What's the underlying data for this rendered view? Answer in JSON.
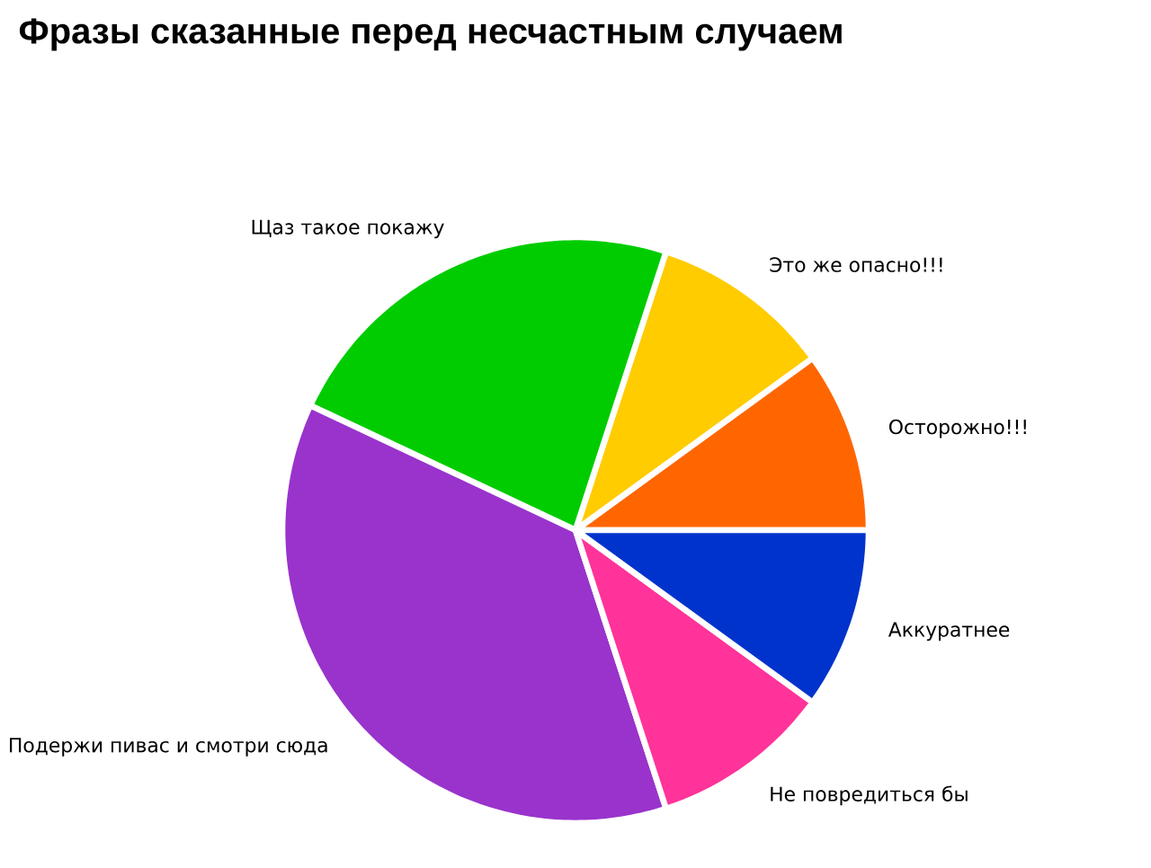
{
  "chart_data": {
    "type": "pie",
    "title": "Фразы сказанные перед несчастным случаем",
    "categories": [
      "Осторожно!!!",
      "Это же опасно!!!",
      "Щаз такое покажу",
      "Подержи пивас и смотри сюда",
      "Не повредиться бы",
      "Аккуратнее"
    ],
    "values": [
      10,
      10,
      23,
      37,
      10,
      10
    ],
    "colors": [
      "#ff6600",
      "#ffcc00",
      "#00cc00",
      "#9933cc",
      "#ff3399",
      "#0033cc"
    ]
  }
}
